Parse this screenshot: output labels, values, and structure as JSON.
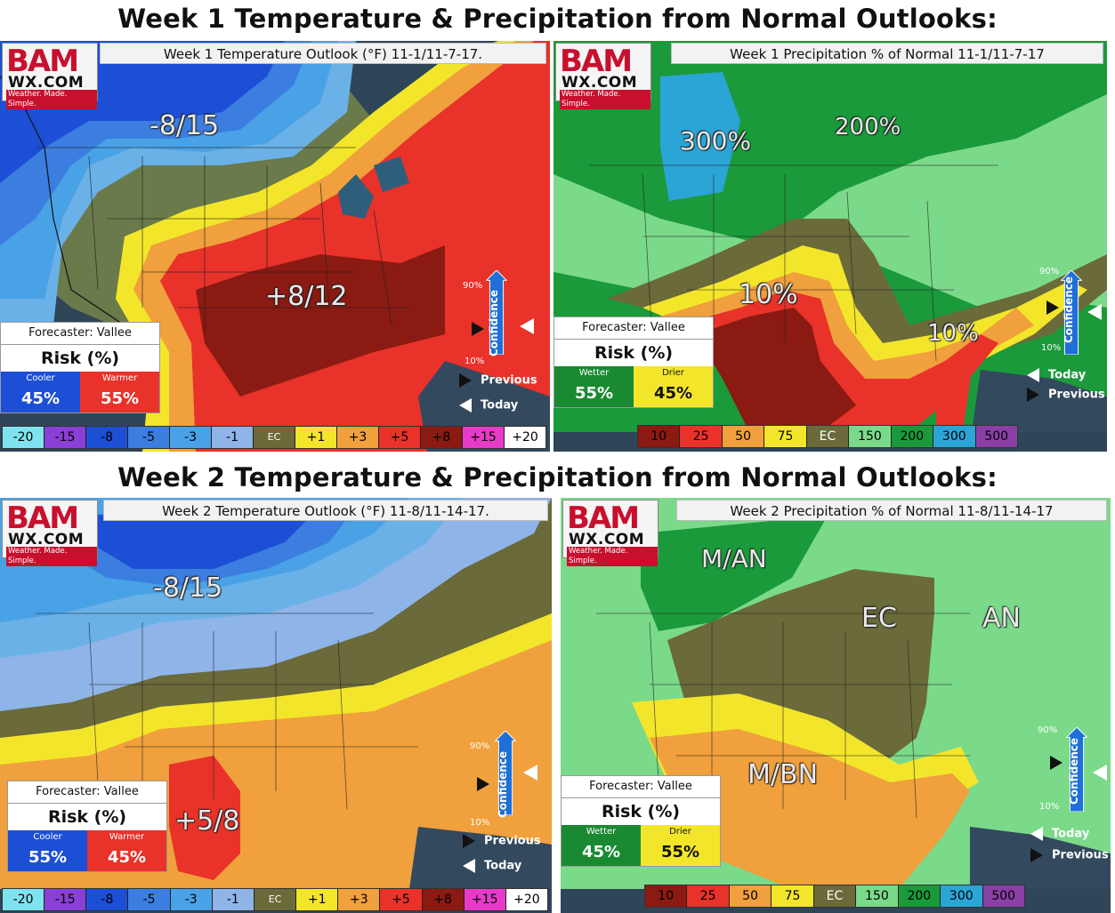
{
  "section1_title": "Week 1 Temperature & Precipitation from Normal Outlooks:",
  "section2_title": "Week 2 Temperature & Precipitation from Normal Outlooks:",
  "logo": {
    "bam": "BAM",
    "wx": "WX.COM",
    "tagline": "Weather. Made. Simple."
  },
  "colors": {
    "temp_cold_deep": "#1d4fd6",
    "temp_warm_deep": "#8a1a12",
    "precip_dry_deep": "#8a1a12",
    "precip_wet": "#1a9a3a"
  },
  "panels": {
    "w1_temp": {
      "title": "Week 1 Temperature Outlook (°F) 11-1/11-7-17.",
      "labels": [
        "-8/15",
        "+8/12"
      ],
      "forecaster": "Forecaster: Vallee",
      "risk_title": "Risk (%)",
      "risk_headers": [
        "Cooler",
        "Warmer"
      ],
      "risk_values": [
        "45%",
        "55%"
      ],
      "conf_hi": "90%",
      "conf_lo": "10%",
      "conf_label": "Confidence",
      "previous": "Previous",
      "today": "Today",
      "legend": [
        "-20",
        "-15",
        "-8",
        "-5",
        "-3",
        "-1",
        "EC",
        "+1",
        "+3",
        "+5",
        "+8",
        "+15",
        "+20"
      ]
    },
    "w1_precip": {
      "title": "Week 1 Precipitation % of Normal 11-1/11-7-17",
      "labels": [
        "300%",
        "200%",
        "10%",
        "10%"
      ],
      "forecaster": "Forecaster: Vallee",
      "risk_title": "Risk (%)",
      "risk_headers": [
        "Wetter",
        "Drier"
      ],
      "risk_values": [
        "55%",
        "45%"
      ],
      "conf_hi": "90%",
      "conf_lo": "10%",
      "conf_label": "Confidence",
      "previous": "Previous",
      "today": "Today",
      "legend": [
        "10",
        "25",
        "50",
        "75",
        "EC",
        "150",
        "200",
        "300",
        "500"
      ]
    },
    "w2_temp": {
      "title": "Week 2 Temperature Outlook (°F) 11-8/11-14-17.",
      "labels": [
        "-8/15",
        "+5/8"
      ],
      "forecaster": "Forecaster: Vallee",
      "risk_title": "Risk (%)",
      "risk_headers": [
        "Cooler",
        "Warmer"
      ],
      "risk_values": [
        "55%",
        "45%"
      ],
      "conf_hi": "90%",
      "conf_lo": "10%",
      "conf_label": "Confidence",
      "previous": "Previous",
      "today": "Today",
      "legend": [
        "-20",
        "-15",
        "-8",
        "-5",
        "-3",
        "-1",
        "EC",
        "+1",
        "+3",
        "+5",
        "+8",
        "+15",
        "+20"
      ]
    },
    "w2_precip": {
      "title": "Week 2 Precipitation % of Normal 11-8/11-14-17",
      "labels": [
        "M/AN",
        "EC",
        "AN",
        "M/BN"
      ],
      "forecaster": "Forecaster: Vallee",
      "risk_title": "Risk (%)",
      "risk_headers": [
        "Wetter",
        "Drier"
      ],
      "risk_values": [
        "45%",
        "55%"
      ],
      "conf_hi": "90%",
      "conf_lo": "10%",
      "conf_label": "Confidence",
      "previous": "Previous",
      "today": "Today",
      "legend": [
        "10",
        "25",
        "50",
        "75",
        "EC",
        "150",
        "200",
        "300",
        "500"
      ]
    }
  }
}
